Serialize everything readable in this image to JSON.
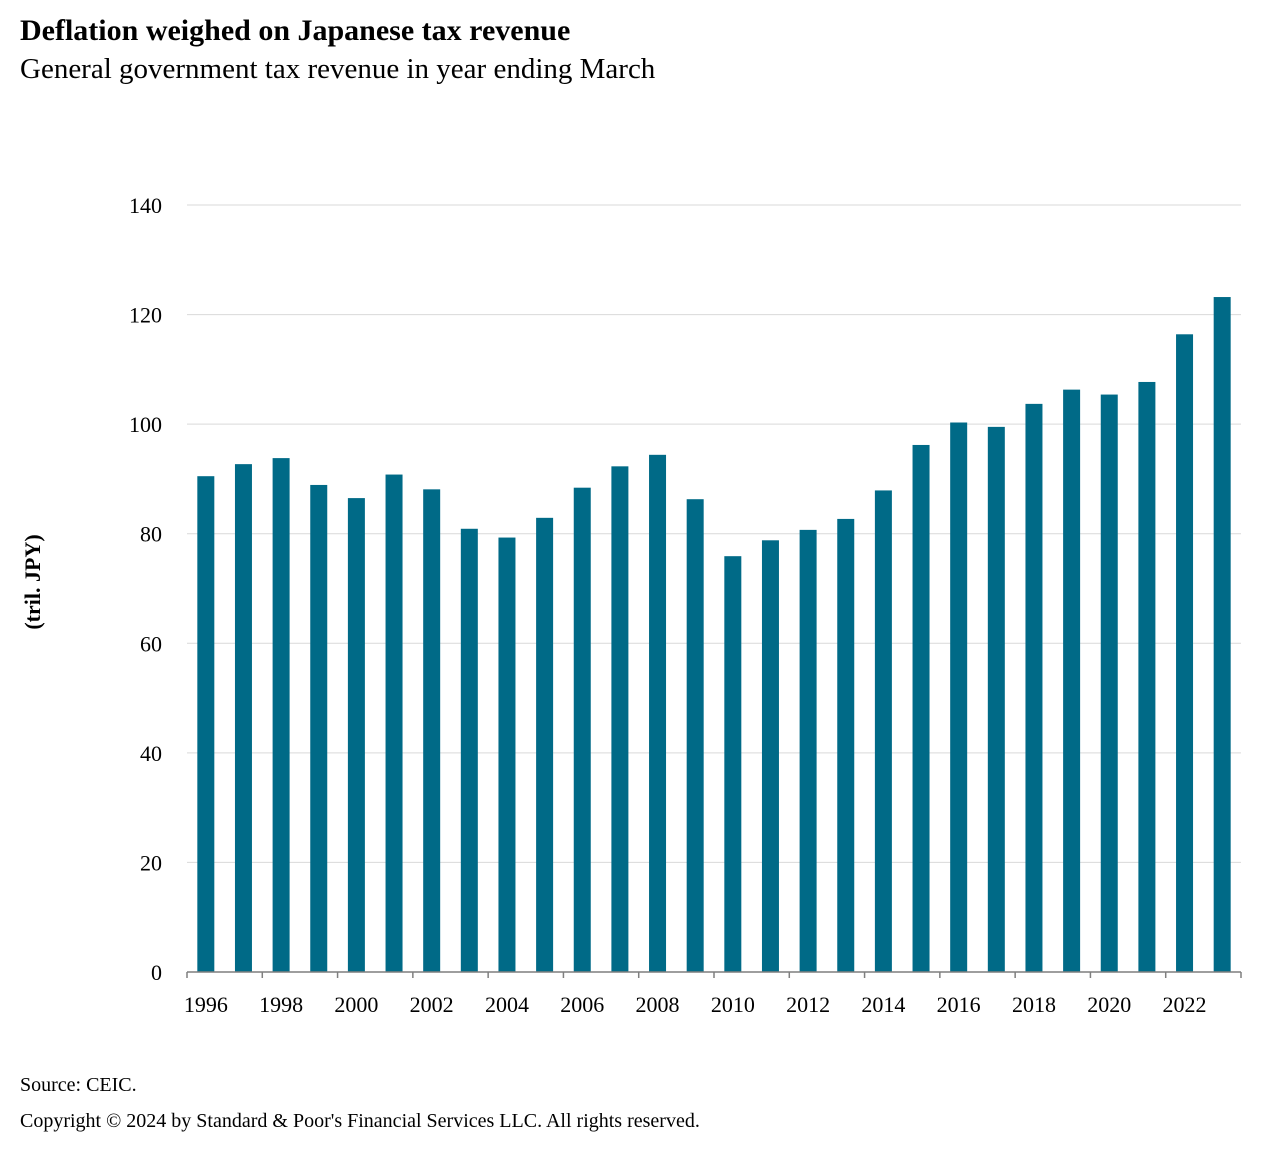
{
  "header": {
    "title": "Deflation weighed on Japanese tax revenue",
    "subtitle": "General government tax revenue in year ending March"
  },
  "footer": {
    "source": "Source: CEIC.",
    "copyright": "Copyright © 2024 by Standard & Poor's Financial Services LLC. All rights reserved."
  },
  "colors": {
    "bar": "#006a87",
    "grid": "#d9d9d9",
    "axis": "#7f7f7f"
  },
  "chart_data": {
    "type": "bar",
    "title": "Deflation weighed on Japanese tax revenue",
    "subtitle": "General government tax revenue in year ending March",
    "xlabel": "",
    "ylabel": "(tril. JPY)",
    "ylim": [
      0,
      140
    ],
    "yticks": [
      0,
      20,
      40,
      60,
      80,
      100,
      120,
      140
    ],
    "grid": true,
    "legend": "none",
    "categories": [
      "1996",
      "1997",
      "1998",
      "1999",
      "2000",
      "2001",
      "2002",
      "2003",
      "2004",
      "2005",
      "2006",
      "2007",
      "2008",
      "2009",
      "2010",
      "2011",
      "2012",
      "2013",
      "2014",
      "2015",
      "2016",
      "2017",
      "2018",
      "2019",
      "2020",
      "2021",
      "2022",
      "2023"
    ],
    "xtick_labels": [
      "1996",
      "1998",
      "2000",
      "2002",
      "2004",
      "2006",
      "2008",
      "2010",
      "2012",
      "2014",
      "2016",
      "2018",
      "2020",
      "2022"
    ],
    "values": [
      90.5,
      92.7,
      93.8,
      88.9,
      86.5,
      90.8,
      88.1,
      80.9,
      79.3,
      82.9,
      88.4,
      92.3,
      94.4,
      86.3,
      75.9,
      78.8,
      80.7,
      82.7,
      87.9,
      96.2,
      100.3,
      99.5,
      103.7,
      106.3,
      105.4,
      107.7,
      116.4,
      123.2
    ]
  }
}
